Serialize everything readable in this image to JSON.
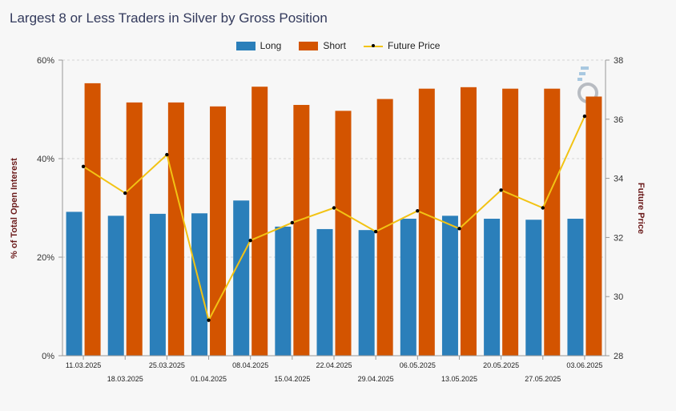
{
  "chart_data": {
    "type": "bar",
    "title": "Largest 8 or Less Traders in Silver by Gross Position",
    "categories": [
      "11.03.2025",
      "18.03.2025",
      "25.03.2025",
      "01.04.2025",
      "08.04.2025",
      "15.04.2025",
      "22.04.2025",
      "29.04.2025",
      "06.05.2025",
      "13.05.2025",
      "20.05.2025",
      "27.05.2025",
      "03.06.2025"
    ],
    "series": [
      {
        "name": "Long",
        "type": "bar",
        "axis": "left",
        "color": "#2b7fba",
        "values": [
          29.2,
          28.4,
          28.8,
          28.9,
          31.5,
          26.2,
          25.7,
          25.5,
          27.8,
          28.4,
          27.8,
          27.6,
          27.8
        ]
      },
      {
        "name": "Short",
        "type": "bar",
        "axis": "left",
        "color": "#d35400",
        "values": [
          55.3,
          51.4,
          51.4,
          50.6,
          54.6,
          50.9,
          49.7,
          52.1,
          54.2,
          54.5,
          54.2,
          54.2,
          52.6
        ]
      },
      {
        "name": "Future Price",
        "type": "line",
        "axis": "right",
        "color": "#f2c314",
        "values": [
          34.4,
          33.5,
          34.8,
          29.2,
          31.9,
          32.5,
          33.0,
          32.2,
          32.9,
          32.3,
          33.6,
          33.0,
          36.1
        ]
      }
    ],
    "ylabel": "% of Total Open Interest",
    "ylabel_right": "Future Price",
    "ylim": [
      0,
      60
    ],
    "ylim_right": [
      28,
      38
    ],
    "yticks": [
      "0%",
      "20%",
      "40%",
      "60%"
    ],
    "yticks_right": [
      "28",
      "30",
      "32",
      "34",
      "36",
      "38"
    ],
    "grid": true,
    "legend": "top-center"
  }
}
